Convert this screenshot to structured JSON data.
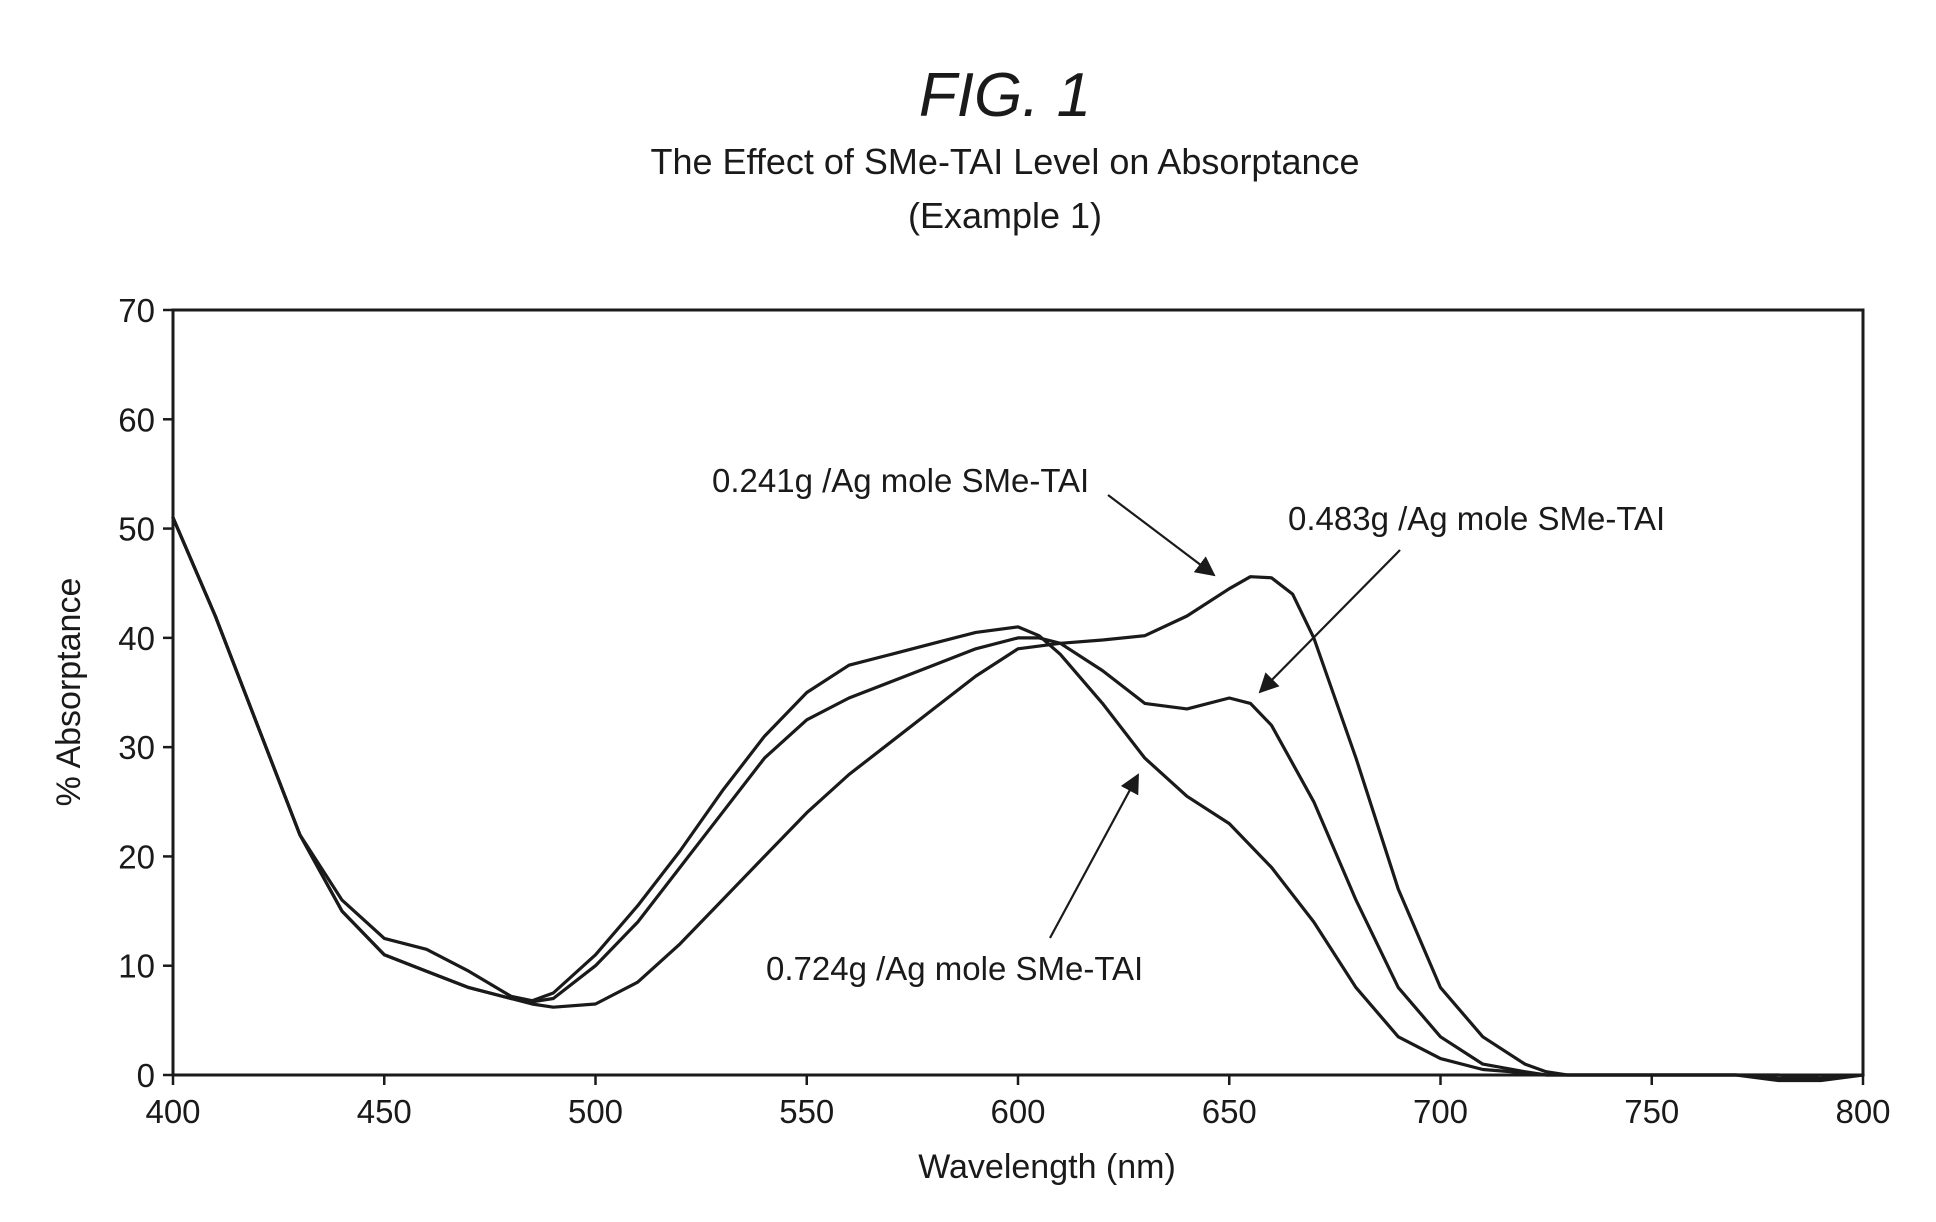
{
  "figure_label": "FIG. 1",
  "chart_data": {
    "type": "line",
    "title": "The Effect of SMe-TAI Level on Absorptance",
    "subtitle": "(Example 1)",
    "xlabel": "Wavelength (nm)",
    "ylabel": "% Absorptance",
    "xlim": [
      400,
      800
    ],
    "ylim": [
      0,
      70
    ],
    "xticks": [
      "400",
      "450",
      "500",
      "550",
      "600",
      "650",
      "700",
      "750",
      "800"
    ],
    "yticks": [
      "0",
      "10",
      "20",
      "30",
      "40",
      "50",
      "60",
      "70"
    ],
    "grid": false,
    "legend": "none (direct annotations with arrows)",
    "series": [
      {
        "name": "0.241g /Ag mole SMe-TAI",
        "x": [
          400,
          410,
          420,
          430,
          440,
          450,
          460,
          470,
          480,
          485,
          490,
          500,
          510,
          520,
          530,
          540,
          550,
          560,
          570,
          580,
          590,
          600,
          610,
          620,
          630,
          640,
          650,
          655,
          660,
          665,
          670,
          680,
          690,
          700,
          710,
          720,
          725,
          730,
          740,
          750,
          760,
          770,
          780,
          790,
          800
        ],
        "y": [
          51,
          42,
          32,
          22,
          15,
          11,
          9.5,
          8,
          7,
          6.5,
          6.2,
          6.5,
          8.5,
          12,
          16,
          20,
          24,
          27.5,
          30.5,
          33.5,
          36.5,
          39,
          39.5,
          39.8,
          40.2,
          42,
          44.5,
          45.6,
          45.5,
          44,
          40,
          29,
          17,
          8,
          3.5,
          1,
          0.3,
          0,
          0,
          0,
          0,
          0,
          0,
          -0.3,
          0
        ]
      },
      {
        "name": "0.483g /Ag mole SMe-TAI",
        "x": [
          400,
          410,
          420,
          430,
          440,
          450,
          460,
          470,
          480,
          485,
          490,
          500,
          510,
          520,
          530,
          540,
          550,
          560,
          570,
          580,
          590,
          600,
          605,
          610,
          620,
          630,
          640,
          650,
          655,
          660,
          670,
          680,
          690,
          700,
          710,
          720,
          725,
          730,
          740,
          750,
          760,
          770,
          780,
          790,
          800
        ],
        "y": [
          51,
          42,
          32,
          22,
          15,
          11,
          9.5,
          8,
          7,
          6.7,
          7,
          10,
          14,
          19,
          24,
          29,
          32.5,
          34.5,
          36,
          37.5,
          39,
          40,
          40,
          39.5,
          37,
          34,
          33.5,
          34.5,
          34,
          32,
          25,
          16,
          8,
          3.5,
          1,
          0.3,
          0,
          0,
          0,
          0,
          0,
          0,
          -0.3,
          -0.3,
          0
        ]
      },
      {
        "name": "0.724g /Ag mole SMe-TAI",
        "x": [
          400,
          410,
          420,
          430,
          440,
          450,
          460,
          470,
          480,
          485,
          490,
          500,
          510,
          520,
          530,
          540,
          550,
          560,
          570,
          580,
          590,
          600,
          605,
          610,
          620,
          630,
          640,
          650,
          660,
          670,
          680,
          690,
          700,
          710,
          720,
          725,
          730,
          740,
          750,
          760,
          770,
          780,
          790,
          800
        ],
        "y": [
          51,
          42,
          32,
          22,
          16,
          12.5,
          11.5,
          9.5,
          7.2,
          6.8,
          7.5,
          11,
          15.5,
          20.5,
          26,
          31,
          35,
          37.5,
          38.5,
          39.5,
          40.5,
          41,
          40.2,
          38.5,
          34,
          29,
          25.5,
          23,
          19,
          14,
          8,
          3.5,
          1.5,
          0.5,
          0.2,
          0,
          0,
          0,
          0,
          0,
          0,
          -0.5,
          -0.5,
          0
        ]
      }
    ],
    "annotations": [
      {
        "text": "0.241g /Ag mole SMe-TAI",
        "series": 0
      },
      {
        "text": "0.483g /Ag mole SMe-TAI",
        "series": 1
      },
      {
        "text": "0.724g /Ag mole SMe-TAI",
        "series": 2
      }
    ]
  }
}
